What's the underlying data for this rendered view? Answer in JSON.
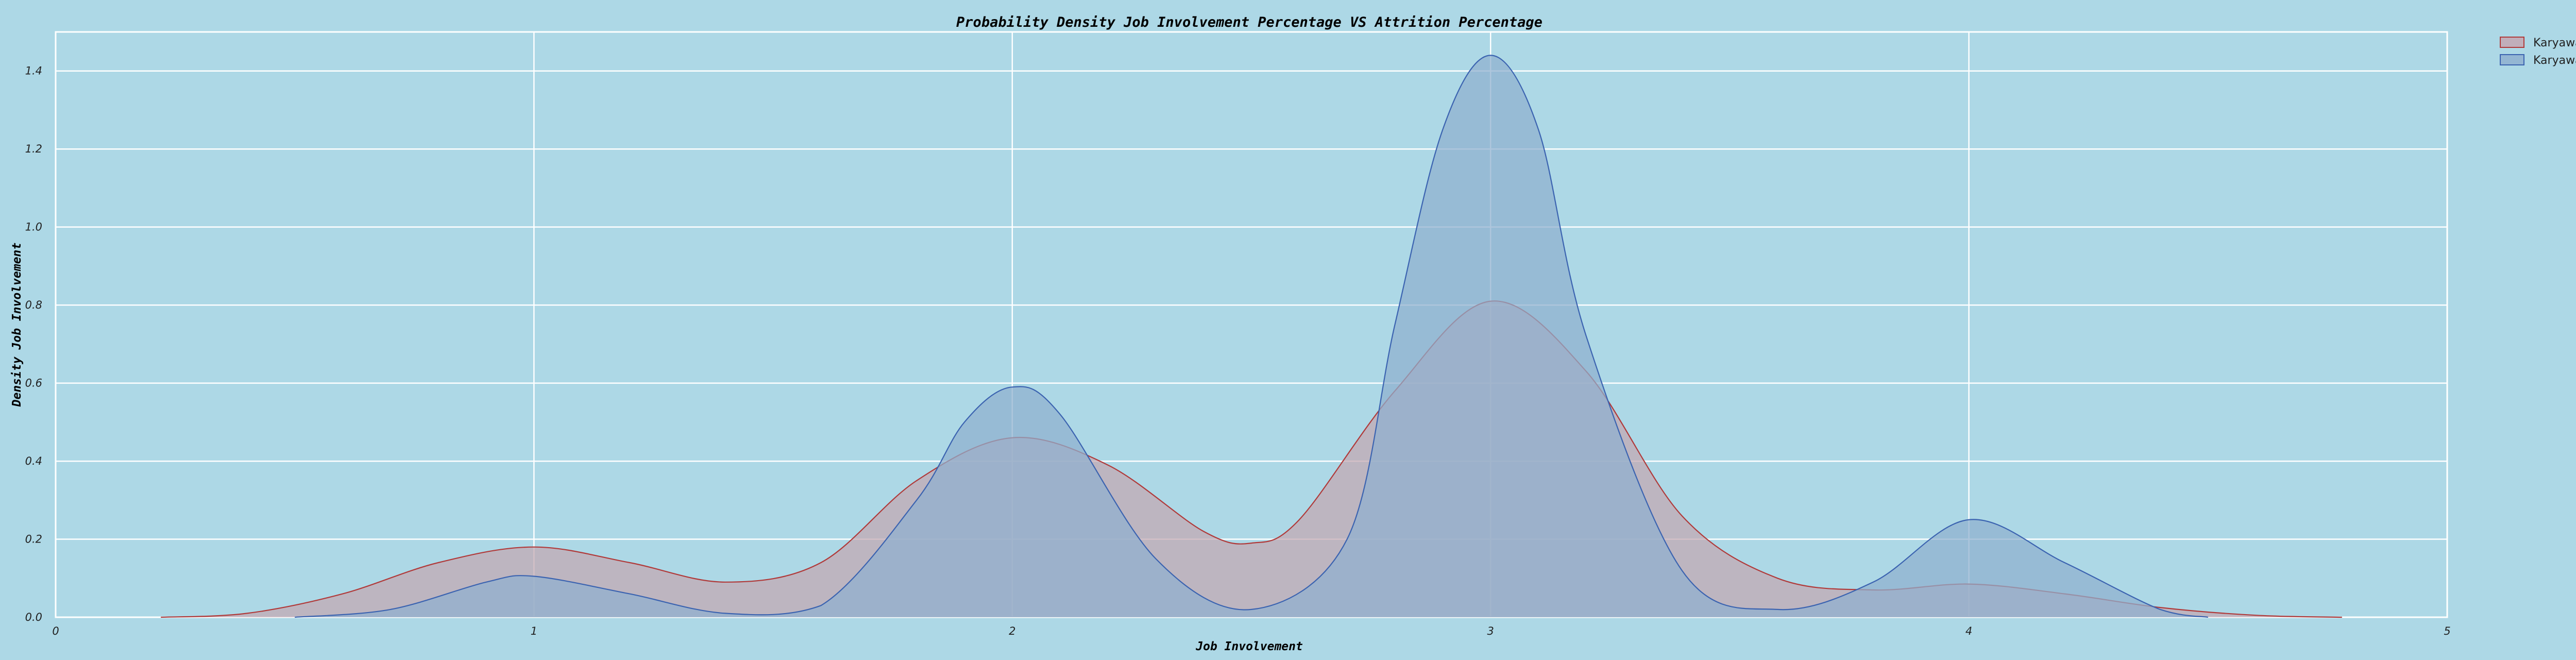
{
  "chart_data": {
    "type": "area",
    "title": "Probability Density Job Involvement Percentage VS Attrition Percentage",
    "xlabel": "Job Involvement",
    "ylabel": "Density Job Involvement",
    "xlim": [
      0,
      5
    ],
    "ylim": [
      0,
      1.5
    ],
    "xticks": [
      "0",
      "1",
      "2",
      "3",
      "4",
      "5"
    ],
    "yticks": [
      "0.0",
      "0.2",
      "0.4",
      "0.6",
      "0.8",
      "1.0",
      "1.2",
      "1.4"
    ],
    "grid": true,
    "legend_position": "top-right, outside plot",
    "series": [
      {
        "name": "Karyawan Resign",
        "fill_color": "#c4a7b2",
        "line_color": "#b03a3a",
        "x": [
          0.22,
          0.4,
          0.6,
          0.8,
          1.0,
          1.2,
          1.4,
          1.6,
          1.8,
          2.0,
          2.2,
          2.4,
          2.5,
          2.6,
          2.8,
          3.0,
          3.2,
          3.4,
          3.6,
          3.8,
          4.0,
          4.2,
          4.4,
          4.6,
          4.78
        ],
        "y": [
          0.0,
          0.01,
          0.06,
          0.14,
          0.18,
          0.14,
          0.09,
          0.14,
          0.35,
          0.46,
          0.39,
          0.22,
          0.19,
          0.25,
          0.58,
          0.81,
          0.63,
          0.26,
          0.1,
          0.07,
          0.085,
          0.06,
          0.025,
          0.005,
          0.0
        ]
      },
      {
        "name": "Karyawan Tidak Resign",
        "fill_color": "#8fb0cf",
        "line_color": "#3b63b0",
        "x": [
          0.5,
          0.7,
          0.9,
          1.0,
          1.2,
          1.4,
          1.6,
          1.8,
          1.9,
          2.0,
          2.1,
          2.3,
          2.5,
          2.7,
          2.8,
          2.9,
          3.0,
          3.1,
          3.2,
          3.4,
          3.6,
          3.8,
          4.0,
          4.2,
          4.4,
          4.5
        ],
        "y": [
          0.0,
          0.02,
          0.09,
          0.105,
          0.06,
          0.01,
          0.03,
          0.3,
          0.5,
          0.59,
          0.52,
          0.15,
          0.02,
          0.2,
          0.75,
          1.25,
          1.44,
          1.25,
          0.72,
          0.12,
          0.02,
          0.09,
          0.25,
          0.14,
          0.02,
          0.0
        ]
      }
    ]
  }
}
